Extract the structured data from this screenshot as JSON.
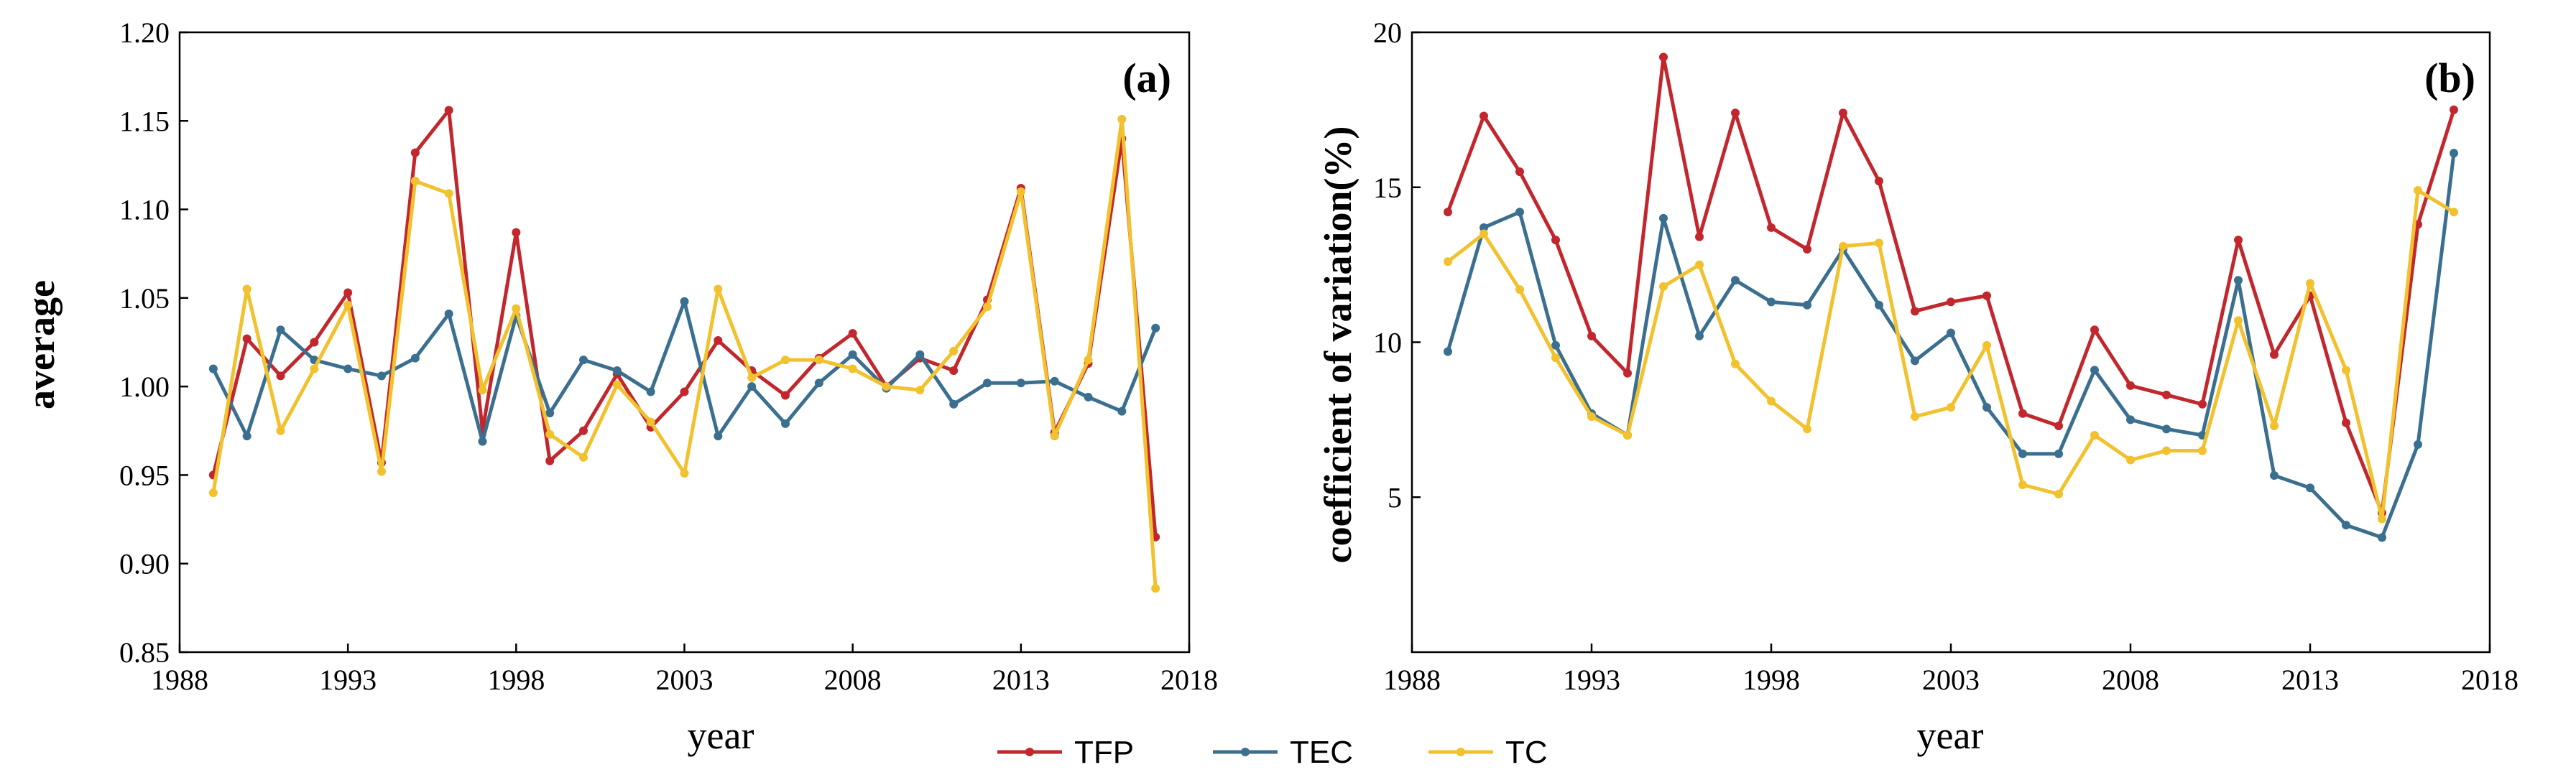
{
  "legend": [
    {
      "name": "TFP",
      "color": "#c1272d"
    },
    {
      "name": "TEC",
      "color": "#3a6f8f"
    },
    {
      "name": "TC",
      "color": "#f2c12e"
    }
  ],
  "chart_data": [
    {
      "type": "line",
      "panel_label": "(a)",
      "xlabel": "year",
      "ylabel": "average",
      "xlim": [
        1988,
        2018
      ],
      "ylim": [
        0.85,
        1.2
      ],
      "x_ticks": [
        1988,
        1993,
        1998,
        2003,
        2008,
        2013,
        2018
      ],
      "y_ticks": [
        0.85,
        0.9,
        0.95,
        1.0,
        1.05,
        1.1,
        1.15,
        1.2
      ],
      "y_decimals": 2,
      "x": [
        1989,
        1990,
        1991,
        1992,
        1993,
        1994,
        1995,
        1996,
        1997,
        1998,
        1999,
        2000,
        2001,
        2002,
        2003,
        2004,
        2005,
        2006,
        2007,
        2008,
        2009,
        2010,
        2011,
        2012,
        2013,
        2014,
        2015,
        2016,
        2017
      ],
      "series": [
        {
          "name": "TFP",
          "color": "#c1272d",
          "values": [
            0.95,
            1.027,
            1.006,
            1.025,
            1.053,
            0.957,
            1.132,
            1.156,
            0.975,
            1.087,
            0.958,
            0.975,
            1.007,
            0.977,
            0.997,
            1.026,
            1.009,
            0.995,
            1.016,
            1.03,
            1.0,
            1.016,
            1.009,
            1.049,
            1.112,
            0.974,
            1.013,
            1.14,
            0.915
          ]
        },
        {
          "name": "TEC",
          "color": "#3a6f8f",
          "values": [
            1.01,
            0.972,
            1.032,
            1.015,
            1.01,
            1.006,
            1.016,
            1.041,
            0.969,
            1.04,
            0.985,
            1.015,
            1.009,
            0.997,
            1.048,
            0.972,
            1.0,
            0.979,
            1.002,
            1.018,
            0.999,
            1.018,
            0.99,
            1.002,
            1.002,
            1.003,
            0.994,
            0.986,
            1.033
          ]
        },
        {
          "name": "TC",
          "color": "#f2c12e",
          "values": [
            0.94,
            1.055,
            0.975,
            1.01,
            1.046,
            0.952,
            1.116,
            1.109,
            0.998,
            1.044,
            0.973,
            0.96,
            1.001,
            0.98,
            0.951,
            1.055,
            1.005,
            1.015,
            1.015,
            1.01,
            1.0,
            0.998,
            1.02,
            1.045,
            1.11,
            0.972,
            1.015,
            1.151,
            0.886
          ]
        }
      ]
    },
    {
      "type": "line",
      "panel_label": "(b)",
      "xlabel": "year",
      "ylabel": "coefficient of variation(%)",
      "xlim": [
        1988,
        2018
      ],
      "ylim": [
        0,
        20
      ],
      "x_ticks": [
        1988,
        1993,
        1998,
        2003,
        2008,
        2013,
        2018
      ],
      "y_ticks": [
        5,
        10,
        15,
        20
      ],
      "y_decimals": 0,
      "x": [
        1989,
        1990,
        1991,
        1992,
        1993,
        1994,
        1995,
        1996,
        1997,
        1998,
        1999,
        2000,
        2001,
        2002,
        2003,
        2004,
        2005,
        2006,
        2007,
        2008,
        2009,
        2010,
        2011,
        2012,
        2013,
        2014,
        2015,
        2016,
        2017
      ],
      "series": [
        {
          "name": "TFP",
          "color": "#c1272d",
          "values": [
            14.2,
            17.3,
            15.5,
            13.3,
            10.2,
            9.0,
            19.2,
            13.4,
            17.4,
            13.7,
            13.0,
            17.4,
            15.2,
            11.0,
            11.3,
            11.5,
            7.7,
            7.3,
            10.4,
            8.6,
            8.3,
            8.0,
            13.3,
            9.6,
            11.5,
            7.4,
            4.5,
            13.8,
            17.5
          ]
        },
        {
          "name": "TEC",
          "color": "#3a6f8f",
          "values": [
            9.7,
            13.7,
            14.2,
            9.9,
            7.7,
            7.0,
            14.0,
            10.2,
            12.0,
            11.3,
            11.2,
            13.0,
            11.2,
            9.4,
            10.3,
            7.9,
            6.4,
            6.4,
            9.1,
            7.5,
            7.2,
            7.0,
            12.0,
            5.7,
            5.3,
            4.1,
            3.7,
            6.7,
            16.1
          ]
        },
        {
          "name": "TC",
          "color": "#f2c12e",
          "values": [
            12.6,
            13.5,
            11.7,
            9.5,
            7.6,
            7.0,
            11.8,
            12.5,
            9.3,
            8.1,
            7.2,
            13.1,
            13.2,
            7.6,
            7.9,
            9.9,
            5.4,
            5.1,
            7.0,
            6.2,
            6.5,
            6.5,
            10.7,
            7.3,
            11.9,
            9.1,
            4.3,
            14.9,
            14.2
          ]
        }
      ]
    }
  ]
}
